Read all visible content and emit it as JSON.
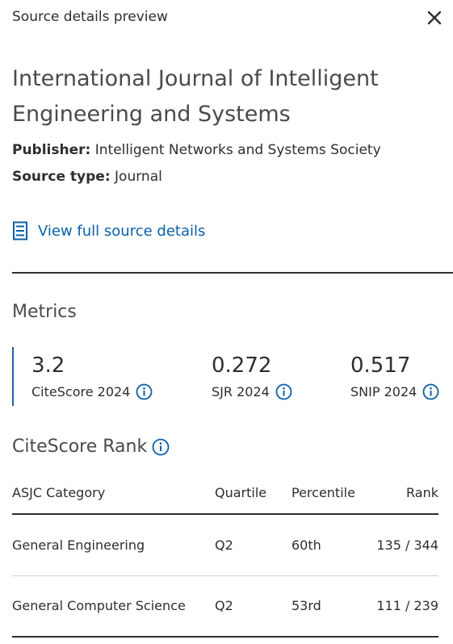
{
  "header": {
    "title": "Source details preview",
    "close_icon": "close-icon"
  },
  "source": {
    "title": "International Journal of Intelligent Engineering and Systems",
    "publisher_label": "Publisher:",
    "publisher": "Intelligent Networks and Systems Society",
    "type_label": "Source type:",
    "type": "Journal",
    "view_link": "View full source details",
    "view_icon": "document-icon"
  },
  "metrics": {
    "heading": "Metrics",
    "items": [
      {
        "value": "3.2",
        "label": "CiteScore 2024"
      },
      {
        "value": "0.272",
        "label": "SJR 2024"
      },
      {
        "value": "0.517",
        "label": "SNIP 2024"
      }
    ]
  },
  "rank": {
    "heading": "CiteScore Rank",
    "columns": [
      "ASJC Category",
      "Quartile",
      "Percentile",
      "Rank"
    ],
    "rows": [
      {
        "category": "General Engineering",
        "quartile": "Q2",
        "percentile": "60th",
        "rank": "135 / 344"
      },
      {
        "category": "General Computer Science",
        "quartile": "Q2",
        "percentile": "53rd",
        "rank": "111 / 239"
      }
    ]
  },
  "colors": {
    "accent": "#0a5fa8",
    "text": "#2e2e2e"
  }
}
